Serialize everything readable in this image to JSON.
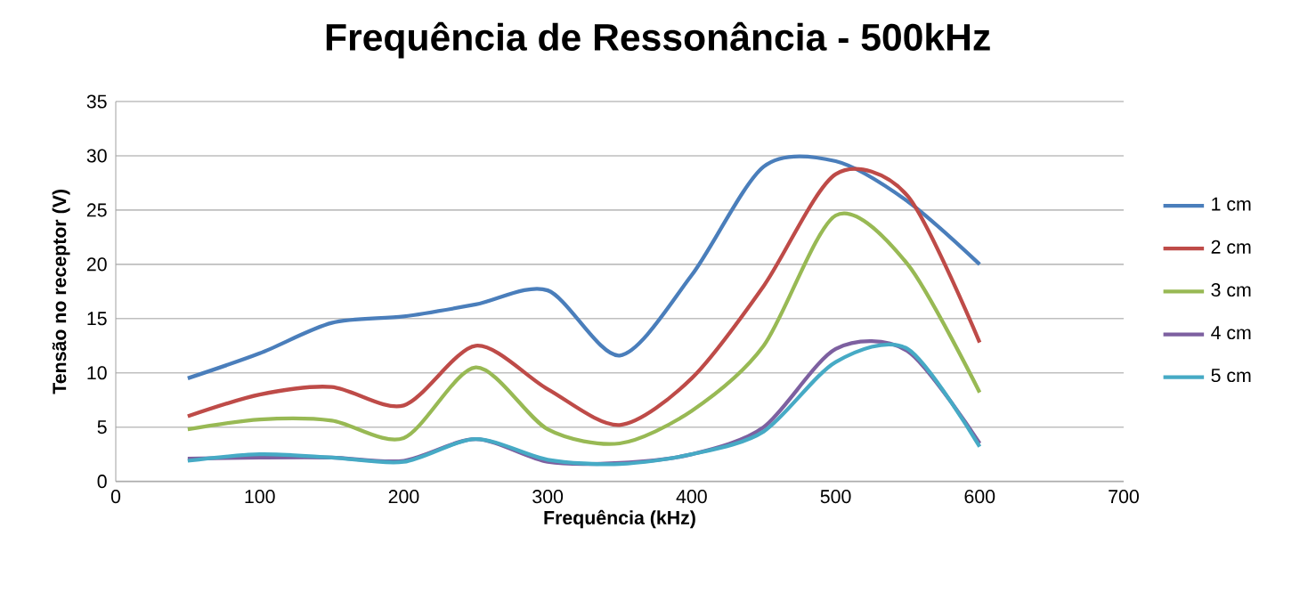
{
  "chart_data": {
    "type": "line",
    "title": "Frequência de Ressonância - 500kHz",
    "xlabel": "Frequência (kHz)",
    "ylabel": "Tensão no receptor (V)",
    "x": [
      50,
      100,
      150,
      200,
      250,
      300,
      350,
      400,
      450,
      500,
      550,
      600
    ],
    "series": [
      {
        "name": "1 cm",
        "color": "#4a7ebb",
        "values": [
          9.5,
          11.8,
          14.6,
          15.2,
          16.3,
          17.6,
          11.6,
          19,
          29,
          29.5,
          25.8,
          20
        ]
      },
      {
        "name": "2 cm",
        "color": "#be4b48",
        "values": [
          6,
          8,
          8.7,
          7,
          12.5,
          8.5,
          5.2,
          9.5,
          18,
          28.3,
          26.3,
          12.8
        ]
      },
      {
        "name": "3 cm",
        "color": "#98b954",
        "values": [
          4.8,
          5.7,
          5.6,
          4,
          10.5,
          4.8,
          3.5,
          6.5,
          12.5,
          24.5,
          20,
          8.2
        ]
      },
      {
        "name": "4 cm",
        "color": "#7d60a0",
        "values": [
          2.1,
          2.2,
          2.2,
          1.9,
          3.9,
          1.8,
          1.7,
          2.5,
          5,
          12.2,
          12,
          3.5
        ]
      },
      {
        "name": "5 cm",
        "color": "#46aac5",
        "values": [
          1.9,
          2.5,
          2.2,
          1.8,
          3.9,
          2,
          1.6,
          2.5,
          4.6,
          11,
          12.2,
          3.2
        ]
      }
    ],
    "xlim": [
      0,
      700
    ],
    "xticks": [
      0,
      100,
      200,
      300,
      400,
      500,
      600,
      700
    ],
    "ylim": [
      0,
      35
    ],
    "yticks": [
      0,
      5,
      10,
      15,
      20,
      25,
      30,
      35
    ],
    "grid": "y",
    "legend": "right",
    "marker": "none",
    "line_style": "solid"
  }
}
